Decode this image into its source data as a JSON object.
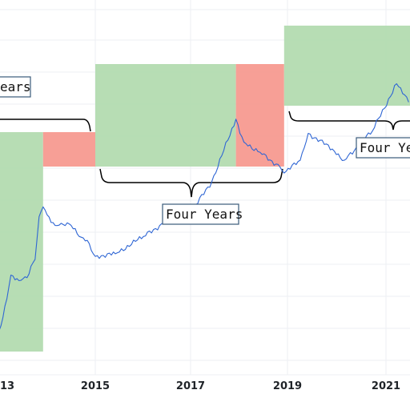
{
  "chart_data": {
    "type": "line",
    "y_scale": "log",
    "grid": true,
    "xlabel": "",
    "ylabel": "",
    "x_ticks": [
      "13",
      "2015",
      "2017",
      "2019",
      "2021"
    ],
    "colors": {
      "line": "#2f66d4",
      "bull_zone": "#b3dbb0",
      "bear_zone": "#f79a90",
      "grid": "#eceff3"
    },
    "series": [
      {
        "values": [
          {
            "x": "2012-10",
            "y": 10
          },
          {
            "x": "2012-12",
            "y": 13
          },
          {
            "x": "2013-02",
            "y": 30
          },
          {
            "x": "2013-04",
            "y": 120
          },
          {
            "x": "2013-06",
            "y": 100
          },
          {
            "x": "2013-08",
            "y": 110
          },
          {
            "x": "2013-10",
            "y": 200
          },
          {
            "x": "2013-11",
            "y": 800
          },
          {
            "x": "2013-12",
            "y": 1100
          },
          {
            "x": "2014-01",
            "y": 850
          },
          {
            "x": "2014-03",
            "y": 600
          },
          {
            "x": "2014-05",
            "y": 620
          },
          {
            "x": "2014-07",
            "y": 600
          },
          {
            "x": "2014-09",
            "y": 420
          },
          {
            "x": "2014-11",
            "y": 370
          },
          {
            "x": "2015-01",
            "y": 220
          },
          {
            "x": "2015-06",
            "y": 240
          },
          {
            "x": "2016-01",
            "y": 420
          },
          {
            "x": "2016-06",
            "y": 650
          },
          {
            "x": "2017-01",
            "y": 950
          },
          {
            "x": "2017-06",
            "y": 2500
          },
          {
            "x": "2017-12",
            "y": 19000
          },
          {
            "x": "2018-02",
            "y": 9000
          },
          {
            "x": "2018-06",
            "y": 6500
          },
          {
            "x": "2018-11",
            "y": 4000
          },
          {
            "x": "2018-12",
            "y": 3300
          },
          {
            "x": "2019-04",
            "y": 5000
          },
          {
            "x": "2019-06",
            "y": 12000
          },
          {
            "x": "2019-12",
            "y": 7200
          },
          {
            "x": "2020-03",
            "y": 5000
          },
          {
            "x": "2020-10",
            "y": 13000
          },
          {
            "x": "2021-04",
            "y": 60000
          },
          {
            "x": "2021-07",
            "y": 33000
          }
        ]
      }
    ],
    "zones": [
      {
        "kind": "bull",
        "from": "2012-07",
        "to": "2013-12"
      },
      {
        "kind": "bear",
        "from": "2013-12",
        "to": "2015-01"
      },
      {
        "kind": "bull",
        "from": "2015-01",
        "to": "2017-12"
      },
      {
        "kind": "bear",
        "from": "2017-12",
        "to": "2018-12"
      },
      {
        "kind": "bull",
        "from": "2018-12",
        "to": "2021-08"
      }
    ],
    "annotations": [
      {
        "text": "ears"
      },
      {
        "text": "Four Years"
      },
      {
        "text": "Four Yea"
      }
    ]
  }
}
